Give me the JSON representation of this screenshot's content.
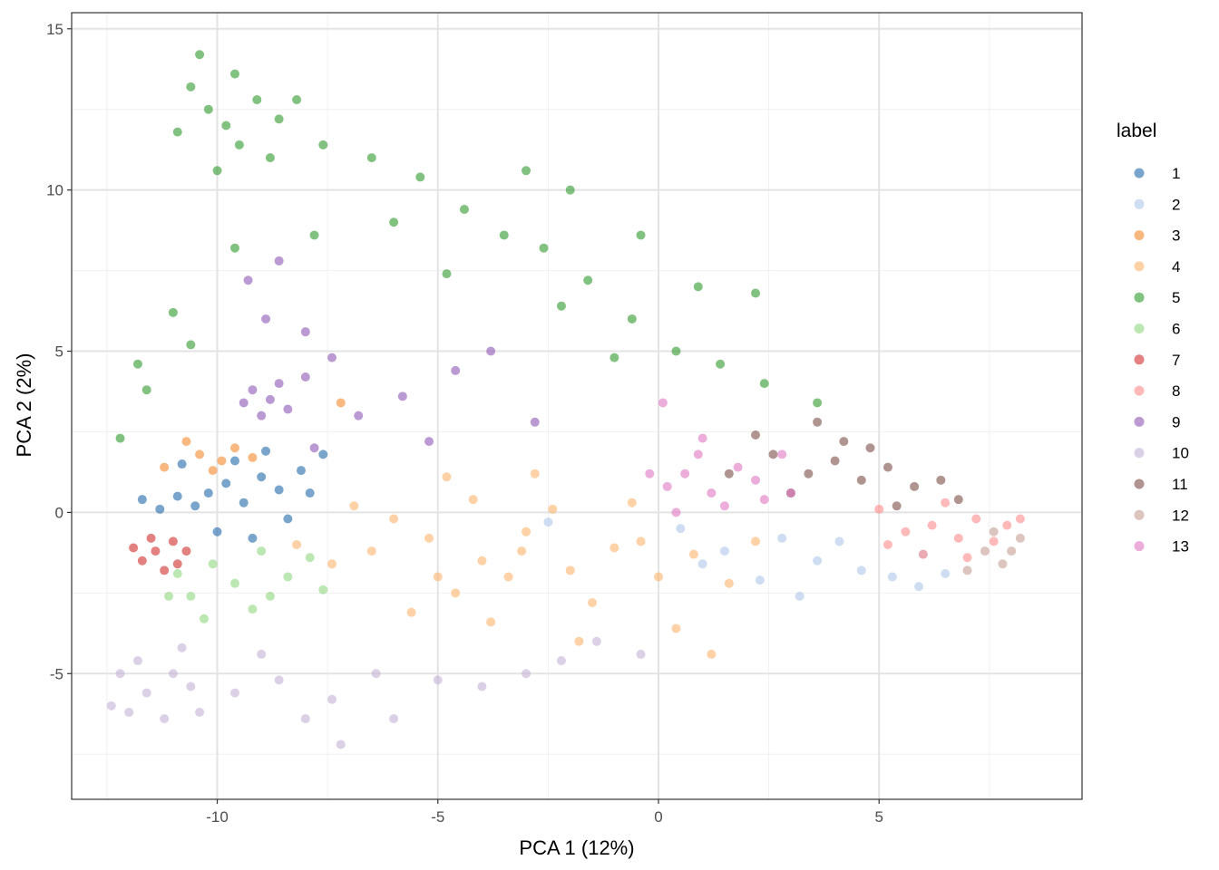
{
  "chart_data": {
    "type": "scatter",
    "xlabel": "PCA 1 (12%)",
    "ylabel": "PCA 2 (2%)",
    "xlim": [
      -13.3,
      9.6
    ],
    "ylim": [
      -8.9,
      15.5
    ],
    "x_ticks": [
      -10,
      -5,
      0,
      5
    ],
    "x_tick_labels": [
      "-10",
      "-5",
      "0",
      "5"
    ],
    "y_ticks": [
      -5,
      0,
      5,
      10,
      15
    ],
    "y_tick_labels": [
      "-5",
      "0",
      "5",
      "10",
      "15"
    ],
    "grid": true,
    "legend_title": "label",
    "legend_position": "right",
    "point_alpha": 0.6,
    "series": [
      {
        "name": "1",
        "color": "#1f68a8",
        "points": [
          [
            -10.2,
            0.6
          ],
          [
            -10.5,
            0.2
          ],
          [
            -9.8,
            0.9
          ],
          [
            -9.4,
            0.3
          ],
          [
            -10.9,
            0.5
          ],
          [
            -9.0,
            1.1
          ],
          [
            -8.6,
            0.7
          ],
          [
            -10.0,
            -0.6
          ],
          [
            -8.1,
            1.3
          ],
          [
            -11.3,
            0.1
          ],
          [
            -9.6,
            1.6
          ],
          [
            -8.4,
            -0.2
          ],
          [
            -7.6,
            1.8
          ],
          [
            -10.8,
            1.5
          ],
          [
            -9.2,
            -0.8
          ],
          [
            -11.7,
            0.4
          ],
          [
            -8.9,
            1.9
          ],
          [
            -7.9,
            0.6
          ]
        ]
      },
      {
        "name": "2",
        "color": "#aec7e8",
        "points": [
          [
            0.5,
            -0.5
          ],
          [
            1.5,
            -1.2
          ],
          [
            2.8,
            -0.8
          ],
          [
            3.6,
            -1.5
          ],
          [
            4.6,
            -1.8
          ],
          [
            5.3,
            -2.0
          ],
          [
            6.0,
            -1.3
          ],
          [
            2.3,
            -2.1
          ],
          [
            4.1,
            -0.9
          ],
          [
            5.9,
            -2.3
          ],
          [
            -2.5,
            -0.3
          ],
          [
            3.2,
            -2.6
          ],
          [
            1.0,
            -1.6
          ],
          [
            6.5,
            -1.9
          ]
        ]
      },
      {
        "name": "3",
        "color": "#f6882d",
        "points": [
          [
            -10.4,
            1.8
          ],
          [
            -9.9,
            1.6
          ],
          [
            -10.7,
            2.2
          ],
          [
            -9.6,
            2.0
          ],
          [
            -11.2,
            1.4
          ],
          [
            -9.2,
            1.7
          ],
          [
            -7.2,
            3.4
          ],
          [
            -10.1,
            1.3
          ]
        ]
      },
      {
        "name": "4",
        "color": "#fdb36c",
        "points": [
          [
            -6.5,
            -1.2
          ],
          [
            -5.2,
            -0.8
          ],
          [
            -4.0,
            -1.5
          ],
          [
            -3.0,
            -0.6
          ],
          [
            -2.0,
            -1.8
          ],
          [
            -1.0,
            -1.1
          ],
          [
            0.0,
            -2.0
          ],
          [
            -7.4,
            -1.6
          ],
          [
            -6.0,
            -0.2
          ],
          [
            -4.6,
            -2.5
          ],
          [
            -3.4,
            -2.0
          ],
          [
            -2.4,
            0.1
          ],
          [
            -1.5,
            -2.8
          ],
          [
            0.8,
            -1.3
          ],
          [
            1.6,
            -2.2
          ],
          [
            -5.6,
            -3.1
          ],
          [
            -4.2,
            0.4
          ],
          [
            -0.6,
            0.3
          ],
          [
            -6.9,
            0.2
          ],
          [
            -3.8,
            -3.4
          ],
          [
            2.2,
            -0.9
          ],
          [
            -5.0,
            -2.0
          ],
          [
            0.4,
            -3.6
          ],
          [
            -8.2,
            -1.0
          ],
          [
            -2.8,
            1.2
          ],
          [
            1.2,
            -4.4
          ],
          [
            -1.8,
            -4.0
          ],
          [
            -3.1,
            -1.2
          ],
          [
            -4.8,
            1.1
          ],
          [
            -0.4,
            -0.9
          ]
        ]
      },
      {
        "name": "5",
        "color": "#2e9a2c",
        "points": [
          [
            -10.2,
            12.5
          ],
          [
            -9.8,
            12.0
          ],
          [
            -10.6,
            13.2
          ],
          [
            -9.5,
            11.4
          ],
          [
            -10.9,
            11.8
          ],
          [
            -9.1,
            12.8
          ],
          [
            -10.0,
            10.6
          ],
          [
            -9.6,
            13.6
          ],
          [
            -8.8,
            11.0
          ],
          [
            -10.4,
            14.2
          ],
          [
            -8.6,
            12.2
          ],
          [
            -7.6,
            11.4
          ],
          [
            -6.5,
            11.0
          ],
          [
            -5.4,
            10.4
          ],
          [
            -4.4,
            9.4
          ],
          [
            -3.5,
            8.6
          ],
          [
            -2.6,
            8.2
          ],
          [
            -1.6,
            7.2
          ],
          [
            -0.6,
            6.0
          ],
          [
            0.4,
            5.0
          ],
          [
            1.4,
            4.6
          ],
          [
            2.4,
            4.0
          ],
          [
            3.6,
            3.4
          ],
          [
            -6.0,
            9.0
          ],
          [
            -4.8,
            7.4
          ],
          [
            -2.2,
            6.4
          ],
          [
            -1.0,
            4.8
          ],
          [
            -7.8,
            8.6
          ],
          [
            -9.6,
            8.2
          ],
          [
            -11.0,
            6.2
          ],
          [
            -11.8,
            4.6
          ],
          [
            -12.2,
            2.3
          ],
          [
            -11.6,
            3.8
          ],
          [
            -10.6,
            5.2
          ],
          [
            -0.4,
            8.6
          ],
          [
            -2.0,
            10.0
          ],
          [
            0.9,
            7.0
          ],
          [
            2.2,
            6.8
          ],
          [
            -3.0,
            10.6
          ],
          [
            -8.2,
            12.8
          ]
        ]
      },
      {
        "name": "6",
        "color": "#8fd77e",
        "points": [
          [
            -10.1,
            -1.6
          ],
          [
            -9.6,
            -2.2
          ],
          [
            -10.6,
            -2.6
          ],
          [
            -9.0,
            -1.2
          ],
          [
            -8.4,
            -2.0
          ],
          [
            -10.9,
            -1.9
          ],
          [
            -9.2,
            -3.0
          ],
          [
            -7.9,
            -1.4
          ],
          [
            -8.8,
            -2.6
          ],
          [
            -10.3,
            -3.3
          ],
          [
            -7.6,
            -2.4
          ],
          [
            -11.1,
            -2.6
          ]
        ]
      },
      {
        "name": "7",
        "color": "#d02b2b",
        "points": [
          [
            -11.4,
            -1.2
          ],
          [
            -11.0,
            -0.9
          ],
          [
            -11.7,
            -1.5
          ],
          [
            -10.9,
            -1.6
          ],
          [
            -11.5,
            -0.8
          ],
          [
            -11.9,
            -1.1
          ],
          [
            -10.7,
            -1.2
          ],
          [
            -11.2,
            -1.8
          ]
        ]
      },
      {
        "name": "8",
        "color": "#ff8a8a",
        "points": [
          [
            6.2,
            -0.4
          ],
          [
            6.8,
            -0.8
          ],
          [
            7.2,
            -0.2
          ],
          [
            5.6,
            -0.6
          ],
          [
            7.6,
            -0.9
          ],
          [
            6.5,
            0.3
          ],
          [
            5.2,
            -1.0
          ],
          [
            7.9,
            -0.4
          ],
          [
            6.0,
            -1.3
          ],
          [
            8.2,
            -0.2
          ],
          [
            5.0,
            0.1
          ],
          [
            7.0,
            -1.4
          ]
        ]
      },
      {
        "name": "9",
        "color": "#8e56b6",
        "points": [
          [
            -8.8,
            3.5
          ],
          [
            -9.2,
            3.8
          ],
          [
            -8.4,
            3.2
          ],
          [
            -9.0,
            3.0
          ],
          [
            -8.6,
            4.0
          ],
          [
            -9.4,
            3.4
          ],
          [
            -8.0,
            4.2
          ],
          [
            -8.9,
            6.0
          ],
          [
            -8.0,
            5.6
          ],
          [
            -7.4,
            4.8
          ],
          [
            -9.3,
            7.2
          ],
          [
            -6.8,
            3.0
          ],
          [
            -5.8,
            3.6
          ],
          [
            -4.6,
            4.4
          ],
          [
            -3.8,
            5.0
          ],
          [
            -2.8,
            2.8
          ],
          [
            -5.2,
            2.2
          ],
          [
            -7.8,
            2.0
          ],
          [
            -8.6,
            7.8
          ]
        ]
      },
      {
        "name": "10",
        "color": "#c3b0d6",
        "points": [
          [
            -11.6,
            -5.6
          ],
          [
            -11.0,
            -5.0
          ],
          [
            -12.0,
            -6.2
          ],
          [
            -10.6,
            -5.4
          ],
          [
            -11.2,
            -6.4
          ],
          [
            -12.2,
            -5.0
          ],
          [
            -10.4,
            -6.2
          ],
          [
            -11.8,
            -4.6
          ],
          [
            -9.6,
            -5.6
          ],
          [
            -8.6,
            -5.2
          ],
          [
            -7.4,
            -5.8
          ],
          [
            -6.4,
            -5.0
          ],
          [
            -5.0,
            -5.2
          ],
          [
            -4.0,
            -5.4
          ],
          [
            -3.0,
            -5.0
          ],
          [
            -2.2,
            -4.6
          ],
          [
            -1.4,
            -4.0
          ],
          [
            -0.4,
            -4.4
          ],
          [
            -8.0,
            -6.4
          ],
          [
            -6.0,
            -6.4
          ],
          [
            -12.4,
            -6.0
          ],
          [
            -10.8,
            -4.2
          ],
          [
            -9.0,
            -4.4
          ],
          [
            -7.2,
            -7.2
          ]
        ]
      },
      {
        "name": "11",
        "color": "#7c4d46",
        "points": [
          [
            4.0,
            1.6
          ],
          [
            4.6,
            1.0
          ],
          [
            3.4,
            1.2
          ],
          [
            5.2,
            1.4
          ],
          [
            2.6,
            1.8
          ],
          [
            5.8,
            0.8
          ],
          [
            4.2,
            2.2
          ],
          [
            3.0,
            0.6
          ],
          [
            6.4,
            1.0
          ],
          [
            4.8,
            2.0
          ],
          [
            2.2,
            2.4
          ],
          [
            1.6,
            1.2
          ],
          [
            3.6,
            2.8
          ],
          [
            6.8,
            0.4
          ],
          [
            5.4,
            0.2
          ]
        ]
      },
      {
        "name": "12",
        "color": "#c49c94",
        "points": [
          [
            7.4,
            -1.2
          ],
          [
            7.8,
            -1.6
          ],
          [
            8.2,
            -0.8
          ],
          [
            7.0,
            -1.8
          ],
          [
            8.0,
            -1.2
          ],
          [
            7.6,
            -0.6
          ]
        ]
      },
      {
        "name": "13",
        "color": "#e076c2",
        "points": [
          [
            0.6,
            1.2
          ],
          [
            1.2,
            0.6
          ],
          [
            1.8,
            1.4
          ],
          [
            0.2,
            0.8
          ],
          [
            2.4,
            0.4
          ],
          [
            0.9,
            1.8
          ],
          [
            1.5,
            0.2
          ],
          [
            2.2,
            1.0
          ],
          [
            0.4,
            0.0
          ],
          [
            1.0,
            2.3
          ],
          [
            3.0,
            0.6
          ],
          [
            2.8,
            1.8
          ],
          [
            -0.2,
            1.2
          ],
          [
            0.1,
            3.4
          ]
        ]
      }
    ]
  }
}
